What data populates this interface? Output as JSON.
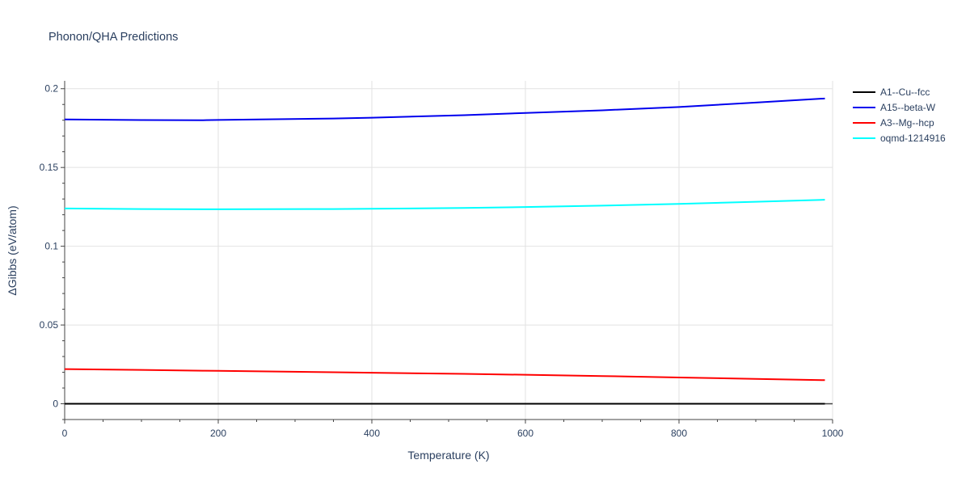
{
  "chart_data": {
    "type": "line",
    "title": "Phonon/QHA Predictions",
    "xlabel": "Temperature (K)",
    "ylabel": "ΔGibbs (eV/atom)",
    "xlim": [
      0,
      1000
    ],
    "ylim": [
      -0.01,
      0.205
    ],
    "x_ticks": [
      0,
      200,
      400,
      600,
      800,
      1000
    ],
    "x_tick_labels": [
      "0",
      "200",
      "400",
      "600",
      "800",
      "1000"
    ],
    "y_ticks": [
      0,
      0.05,
      0.1,
      0.15,
      0.2
    ],
    "y_tick_labels": [
      "0",
      "0.05",
      "0.1",
      "0.15",
      "0.2"
    ],
    "grid": true,
    "legend_position": "top-right",
    "x": [
      0,
      100,
      180,
      200,
      350,
      400,
      520,
      600,
      700,
      800,
      900,
      990
    ],
    "series": [
      {
        "name": "A1--Cu--fcc",
        "color": "#000000",
        "values": [
          0,
          0,
          0,
          0,
          0,
          0,
          0,
          0,
          0,
          0,
          0,
          0
        ]
      },
      {
        "name": "A15--beta-W",
        "color": "#0000ee",
        "values": [
          0.1805,
          0.1801,
          0.18,
          0.1802,
          0.1811,
          0.1816,
          0.1832,
          0.1846,
          0.1863,
          0.1884,
          0.1912,
          0.1938
        ]
      },
      {
        "name": "A3--Mg--hcp",
        "color": "#ff0000",
        "values": [
          0.022,
          0.0215,
          0.021,
          0.0209,
          0.02,
          0.0197,
          0.019,
          0.0184,
          0.0176,
          0.0167,
          0.0158,
          0.015
        ]
      },
      {
        "name": "oqmd-1214916",
        "color": "#00ffff",
        "values": [
          0.124,
          0.1236,
          0.1235,
          0.1235,
          0.1236,
          0.1238,
          0.1243,
          0.1249,
          0.1258,
          0.1269,
          0.1282,
          0.1295
        ]
      }
    ]
  }
}
